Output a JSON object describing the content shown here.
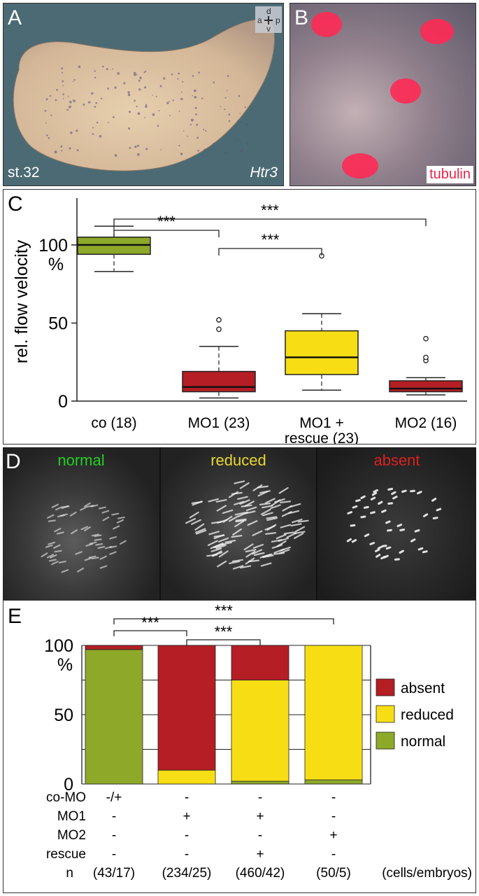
{
  "panel_a": {
    "letter": "A",
    "stage": "st.32",
    "gene": "Htr3",
    "axes": {
      "dorsal": "d",
      "anterior": "a",
      "posterior": "p",
      "ventral": "v"
    }
  },
  "panel_b": {
    "letter": "B",
    "label": "tubulin"
  },
  "panel_d": {
    "letter": "D",
    "tiles": [
      {
        "label": "normal",
        "color": "#22d022"
      },
      {
        "label": "reduced",
        "color": "#e8d830"
      },
      {
        "label": "absent",
        "color": "#dd2020"
      }
    ]
  },
  "colors": {
    "green": "#8ea82a",
    "yellow": "#f7de14",
    "red": "#b41e24"
  },
  "chart_data": [
    {
      "panel": "C",
      "type": "box",
      "ylabel": "rel. flow velocity",
      "yunit": "%",
      "ylim": [
        0,
        130
      ],
      "yticks": [
        0,
        50,
        100
      ],
      "categories": [
        "co (18)",
        "MO1 (23)",
        "MO1 + rescue (23)",
        "MO2 (16)"
      ],
      "category_lines": [
        [
          "co (18)"
        ],
        [
          "MO1 (23)"
        ],
        [
          "MO1 +",
          "rescue (23)"
        ],
        [
          "MO2 (16)"
        ]
      ],
      "boxes": [
        {
          "whisker_low": 83,
          "q1": 94,
          "median": 100,
          "q3": 105,
          "whisker_high": 112,
          "outliers": [],
          "color": "#8ea82a"
        },
        {
          "whisker_low": 2,
          "q1": 6,
          "median": 9,
          "q3": 19,
          "whisker_high": 35,
          "outliers": [
            46,
            52
          ],
          "color": "#b41e24"
        },
        {
          "whisker_low": 7,
          "q1": 17,
          "median": 28,
          "q3": 45,
          "whisker_high": 56,
          "outliers": [
            93
          ],
          "color": "#f7de14"
        },
        {
          "whisker_low": 4,
          "q1": 6,
          "median": 8,
          "q3": 13,
          "whisker_high": 15,
          "outliers": [
            26,
            28,
            40
          ],
          "color": "#b41e24"
        }
      ],
      "significance": [
        {
          "from": 0,
          "to": 1,
          "label": "***"
        },
        {
          "from": 1,
          "to": 2,
          "label": "***"
        },
        {
          "from": 0,
          "to": 3,
          "label": "***"
        }
      ]
    },
    {
      "panel": "E",
      "type": "stacked_bar",
      "ylim": [
        0,
        100
      ],
      "yticks": [
        0,
        50,
        100
      ],
      "yunit": "%",
      "categories": [
        "(43/17)",
        "(234/25)",
        "(460/42)",
        "(50/5)"
      ],
      "series": [
        {
          "name": "normal",
          "values": [
            97,
            0,
            2,
            3
          ],
          "color": "#8ea82a"
        },
        {
          "name": "reduced",
          "values": [
            0,
            10,
            73,
            97
          ],
          "color": "#f7de14"
        },
        {
          "name": "absent",
          "values": [
            3,
            90,
            25,
            0
          ],
          "color": "#b41e24"
        }
      ],
      "legend_order": [
        "absent",
        "reduced",
        "normal"
      ],
      "significance": [
        {
          "from": 0,
          "to": 1,
          "label": "***"
        },
        {
          "from": 1,
          "to": 2,
          "label": "***"
        },
        {
          "from": 0,
          "to": 3,
          "label": "***"
        }
      ],
      "condition_rows": [
        {
          "label": "co-MO",
          "values": [
            "-/+",
            "-",
            "-",
            "-"
          ]
        },
        {
          "label": "MO1",
          "values": [
            "-",
            "+",
            "+",
            "-"
          ]
        },
        {
          "label": "MO2",
          "values": [
            "-",
            "-",
            "-",
            "+"
          ]
        },
        {
          "label": "rescue",
          "values": [
            "-",
            "-",
            "+",
            "-"
          ]
        }
      ],
      "n_label": "n",
      "n_unit": "(cells/embryos)"
    }
  ]
}
